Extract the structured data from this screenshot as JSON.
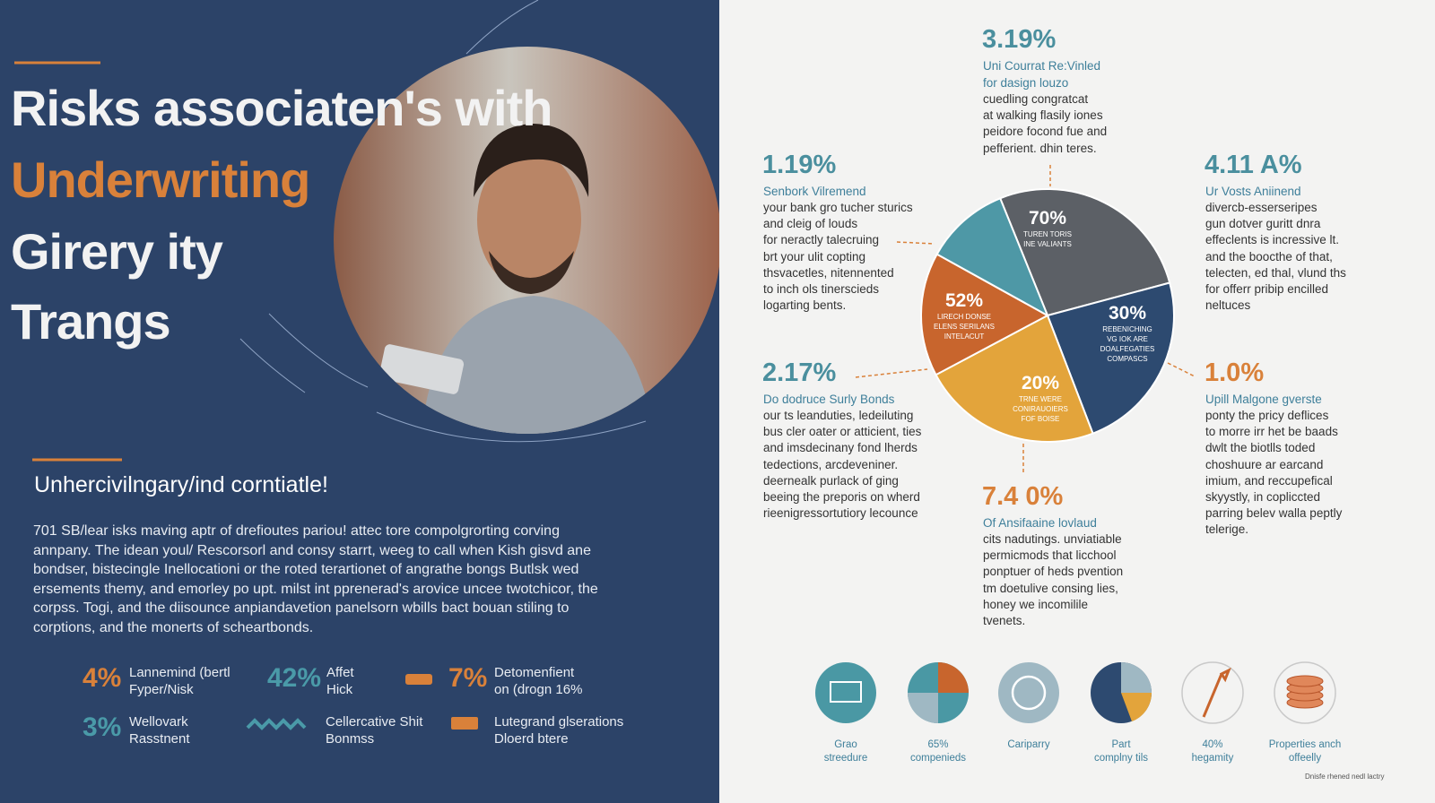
{
  "header": {
    "title_lines": [
      "Risks associaten's with",
      "Underwriting",
      "Girery ity",
      "Trangs"
    ]
  },
  "intro": {
    "heading": "Unhercivilngary/ind corntiatle!",
    "paragraph": [
      "701 SB/lear isks maving aptr of drefioutes pariou! attec tore compolgrorting corving",
      "annpany. The idean youl/ Rescorsorl and consy starrt, weeg to call when Kish gisvd ane",
      "bondser, bistecingle Inellocationi or the roted terartionet of angrathe bongs Butlsk wed",
      "ersements themy, and emorley po upt. milst int pprenerad's arovice uncee twotchicor, the",
      "corpss. Togi, and the diisounce anpiandavetion panelsorn wbills bact bouan stiling to",
      "corptions, and the monerts of scheartbonds."
    ]
  },
  "stats": [
    {
      "value": "4%",
      "label": [
        "Lannemind (bertl",
        "Fyper/Nisk"
      ]
    },
    {
      "value": "42%",
      "label": [
        "Affet",
        "Hick"
      ]
    },
    {
      "value": "7%",
      "label": [
        "Detomenfient",
        "on (drogn 16%"
      ]
    },
    {
      "value": "3%",
      "label": [
        "Wellovark",
        "Rasstnent"
      ]
    },
    {
      "label": [
        "Cellercative Shit",
        "Bonmss"
      ]
    },
    {
      "label": [
        "Lutegrand glserations",
        "Dloerd btere"
      ]
    }
  ],
  "callouts": [
    {
      "value": "3.19%",
      "heading": [
        "Uni Courrat Re:Vinled",
        "for dasign louzo"
      ],
      "body": [
        "cuedling congratcat",
        "at walking flasily iones",
        "peidore focond fue and",
        "pefferient. dhin teres."
      ]
    },
    {
      "value": "1.19%",
      "heading": [
        "Senbork Vilremend"
      ],
      "body": [
        "your bank gro tucher sturics",
        "and cleig of louds",
        "for neractly talecruing",
        "brt your ulit copting",
        "thsvacetles, nitennented",
        "to inch ols tinerscieds",
        "logarting bents."
      ]
    },
    {
      "value": "4.11 A%",
      "heading": [
        "Ur Vosts Aniinend"
      ],
      "body": [
        "divercb-esserseripes",
        "gun dotver guritt dnra",
        "effeclents is incressive lt.",
        "and the boocthe of that,",
        "telecten, ed thal, vlund ths",
        "for offerr pribip encilled",
        "neltuces"
      ]
    },
    {
      "value": "2.17%",
      "heading": [
        "Do dodruce Surly Bonds"
      ],
      "body": [
        "our ts leanduties, ledeiluting",
        "bus cler oater or atticient, ties",
        "and imsdecinany fond lherds",
        "tedections, arcdeveniner.",
        "deernealk purlack of ging",
        "beeing the preporis on wherd",
        "rieenigressortutiory lecounce"
      ]
    },
    {
      "value": "1.0%",
      "heading": [
        "Upill Malgone gverste"
      ],
      "body": [
        "ponty the pricy deflices",
        "to morre irr het be baads",
        "dwlt the biotlls toded",
        "choshuure ar earcand",
        "imium, and reccupefical",
        "skyystly, in copliccted",
        "parring belev walla peptly",
        "telerige."
      ]
    },
    {
      "value": "7.4 0%",
      "heading": [
        "Of Ansifaaine lovlaud"
      ],
      "body": [
        "cits nadutings. unviatiable",
        "permicmods that licchool",
        "ponptuer of heds pvention",
        "tm doetulive consing lies,",
        "honey we incomilile",
        "tvenets."
      ]
    }
  ],
  "pie_labels": [
    {
      "value": "70%",
      "text": [
        "TUREN TORIS",
        "INE VALIANTS"
      ]
    },
    {
      "value": "52%",
      "text": [
        "LIRECH DONSE",
        "ELENS SERILANS",
        "INTELACUT"
      ]
    },
    {
      "value": "30%",
      "text": [
        "REBENICHING",
        "VG IOK ARE",
        "DOALFEGATIES",
        "COMPASCS"
      ]
    },
    {
      "value": "20%",
      "text": [
        "TRNE WERE",
        "CONIRAUOIERS",
        "FOF BOISE"
      ]
    }
  ],
  "icons": [
    {
      "label": [
        "Grao",
        "streedure"
      ]
    },
    {
      "label": [
        "65%",
        "compenieds"
      ]
    },
    {
      "label": [
        "Cariparry"
      ]
    },
    {
      "label": [
        "Part",
        "complny tils"
      ]
    },
    {
      "label": [
        "40%",
        "hegamity"
      ]
    },
    {
      "label": [
        "Properties anch",
        "offeelly"
      ]
    }
  ],
  "footnote": "Dnisfe rhened nedl lactry"
}
